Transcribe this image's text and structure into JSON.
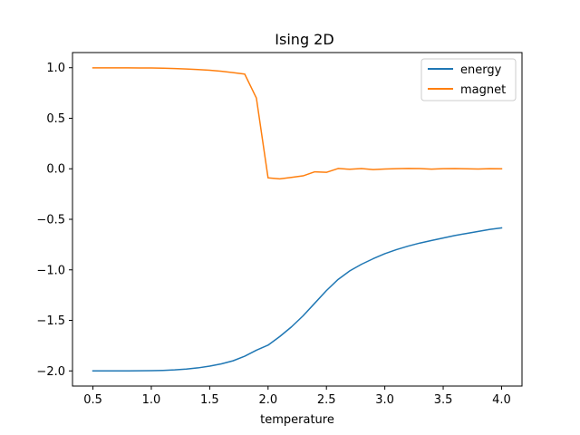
{
  "chart_data": {
    "type": "line",
    "title": "Ising 2D",
    "xlabel": "temperature",
    "ylabel": "",
    "xlim": [
      0.325,
      4.175
    ],
    "ylim": [
      -2.15,
      1.15
    ],
    "x_ticks": [
      {
        "value": 0.5,
        "label": "0.5"
      },
      {
        "value": 1.0,
        "label": "1.0"
      },
      {
        "value": 1.5,
        "label": "1.5"
      },
      {
        "value": 2.0,
        "label": "2.0"
      },
      {
        "value": 2.5,
        "label": "2.5"
      },
      {
        "value": 3.0,
        "label": "3.0"
      },
      {
        "value": 3.5,
        "label": "3.5"
      },
      {
        "value": 4.0,
        "label": "4.0"
      }
    ],
    "y_ticks": [
      {
        "value": 1.0,
        "label": "1.0"
      },
      {
        "value": 0.5,
        "label": "0.5"
      },
      {
        "value": 0.0,
        "label": "0.0"
      },
      {
        "value": -0.5,
        "label": "−0.5"
      },
      {
        "value": -1.0,
        "label": "−1.0"
      },
      {
        "value": -1.5,
        "label": "−1.5"
      },
      {
        "value": -2.0,
        "label": "−2.0"
      }
    ],
    "grid": false,
    "legend_position": "top-right",
    "x": [
      0.5,
      0.6,
      0.7,
      0.8,
      0.9,
      1.0,
      1.1,
      1.2,
      1.3,
      1.4,
      1.5,
      1.6,
      1.7,
      1.8,
      1.9,
      2.0,
      2.1,
      2.2,
      2.3,
      2.4,
      2.5,
      2.6,
      2.7,
      2.8,
      2.9,
      3.0,
      3.1,
      3.2,
      3.3,
      3.4,
      3.5,
      3.6,
      3.7,
      3.8,
      3.9,
      4.0
    ],
    "series": [
      {
        "name": "energy",
        "color": "#1f77b4",
        "values": [
          -2.0,
          -2.0,
          -2.0,
          -2.0,
          -1.999,
          -1.998,
          -1.995,
          -1.99,
          -1.982,
          -1.97,
          -1.953,
          -1.93,
          -1.9,
          -1.855,
          -1.795,
          -1.745,
          -1.66,
          -1.565,
          -1.455,
          -1.33,
          -1.205,
          -1.095,
          -1.01,
          -0.945,
          -0.89,
          -0.84,
          -0.8,
          -0.765,
          -0.735,
          -0.71,
          -0.685,
          -0.66,
          -0.64,
          -0.62,
          -0.6,
          -0.585
        ]
      },
      {
        "name": "magnet",
        "color": "#ff7f0e",
        "values": [
          0.999,
          0.999,
          0.999,
          0.999,
          0.998,
          0.997,
          0.995,
          0.992,
          0.988,
          0.982,
          0.975,
          0.965,
          0.952,
          0.937,
          0.7,
          -0.09,
          -0.1,
          -0.085,
          -0.07,
          -0.03,
          -0.035,
          0.003,
          -0.005,
          0.002,
          -0.008,
          -0.002,
          0.001,
          0.003,
          0.002,
          -0.003,
          0.001,
          0.002,
          0.0,
          -0.002,
          0.001,
          0.0
        ]
      }
    ]
  }
}
